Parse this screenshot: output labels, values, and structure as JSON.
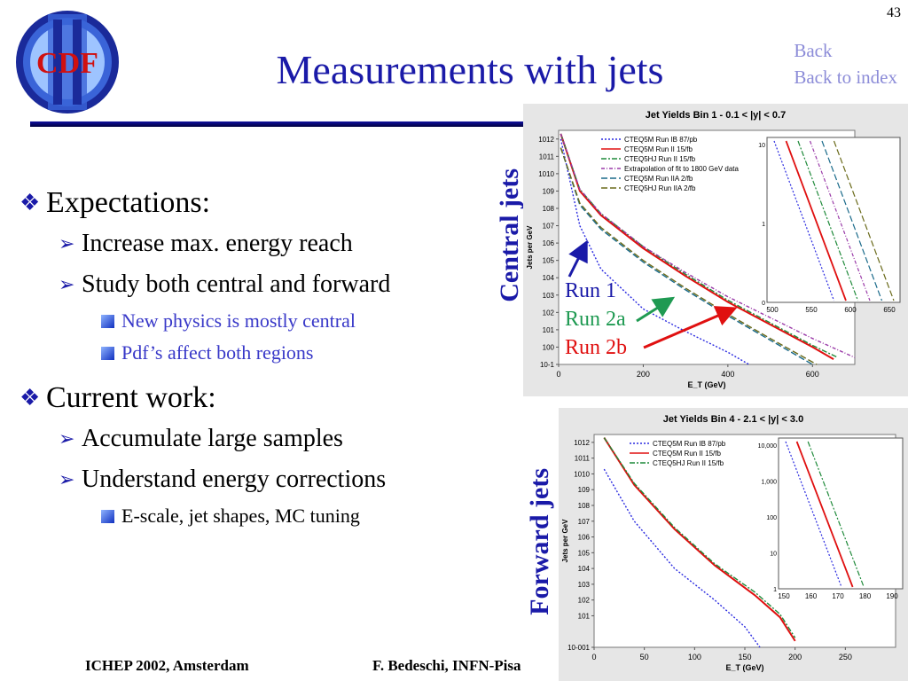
{
  "page_number": "43",
  "title": "Measurements with jets",
  "logo": {
    "text": "CDF",
    "numeral": "II"
  },
  "nav": {
    "back": "Back",
    "back_to_index": "Back to index"
  },
  "bullets": {
    "b1": "Expectations:",
    "b1_1": "Increase max. energy reach",
    "b1_2": "Study both central and forward",
    "b1_2_1": "New physics is mostly central",
    "b1_2_2": "Pdf’s affect both regions",
    "b2": "Current work:",
    "b2_1": "Accumulate large samples",
    "b2_2": "Understand energy corrections",
    "b2_2_1": "E-scale, jet shapes, MC tuning"
  },
  "side_labels": {
    "central": "Central jets",
    "forward": "Forward jets"
  },
  "run_labels": {
    "run1": "Run 1",
    "run2a": "Run 2a",
    "run2b": "Run 2b"
  },
  "footer": {
    "left": "ICHEP 2002, Amsterdam",
    "right": "F. Bedeschi, INFN-Pisa"
  },
  "colors": {
    "title": "#1a1aa8",
    "run1": "#1a1aa8",
    "run2a": "#1f9a52",
    "run2b": "#e01010"
  },
  "chart_data": [
    {
      "type": "line",
      "title": "Jet Yields Bin 1 - 0.1 < |y| < 0.7",
      "xlabel": "E_T (GeV)",
      "ylabel": "Jets per GeV",
      "xlim": [
        0,
        700
      ],
      "ylim_log10": [
        -1,
        12.5
      ],
      "y_scale": "log",
      "xticks": [
        "0",
        "200",
        "400",
        "600"
      ],
      "yticks": [
        "10^-1",
        "10^0",
        "10^1",
        "10^2",
        "10^3",
        "10^4",
        "10^5",
        "10^6",
        "10^7",
        "10^8",
        "10^9",
        "10^10",
        "10^11",
        "10^12"
      ],
      "series": [
        {
          "name": "CTEQ5M Run IB 87/pb",
          "color": "#2a2ae0",
          "dash": "2,2",
          "x": [
            5,
            50,
            100,
            200,
            300,
            400,
            450
          ],
          "log10y": [
            12,
            7,
            4.5,
            2.2,
            0.9,
            -0.3,
            -1
          ]
        },
        {
          "name": "CTEQ5M Run II 15/fb",
          "color": "#e01010",
          "dash": "",
          "x": [
            5,
            50,
            100,
            200,
            300,
            400,
            500,
            600,
            650
          ],
          "log10y": [
            12.3,
            9,
            7.6,
            5.7,
            4.1,
            2.6,
            1.3,
            0,
            -0.7
          ]
        },
        {
          "name": "CTEQ5HJ Run II 15/fb",
          "color": "#1f8a3a",
          "dash": "6,2,2,2",
          "x": [
            5,
            50,
            100,
            200,
            300,
            400,
            500,
            600,
            660
          ],
          "log10y": [
            12.3,
            9.1,
            7.7,
            5.8,
            4.2,
            2.7,
            1.4,
            0.1,
            -0.6
          ]
        },
        {
          "name": "Extrapolation of fit to 1800 GeV data",
          "color": "#9a3aa8",
          "dash": "4,2,1,2",
          "x": [
            5,
            50,
            100,
            200,
            300,
            400,
            500,
            600,
            700
          ],
          "log10y": [
            12.3,
            9.1,
            7.7,
            5.8,
            4.3,
            2.9,
            1.7,
            0.5,
            -0.6
          ]
        },
        {
          "name": "CTEQ5M Run IIA 2/fb",
          "color": "#1a6a8a",
          "dash": "7,3",
          "x": [
            5,
            50,
            100,
            200,
            300,
            400,
            500,
            600
          ],
          "log10y": [
            11.5,
            8.2,
            6.8,
            4.9,
            3.3,
            1.8,
            0.4,
            -1
          ]
        },
        {
          "name": "CTEQ5HJ Run IIA 2/fb",
          "color": "#6a6a1a",
          "dash": "7,3",
          "x": [
            5,
            50,
            100,
            200,
            300,
            400,
            500,
            610
          ],
          "log10y": [
            11.5,
            8.3,
            6.9,
            5.0,
            3.4,
            1.9,
            0.5,
            -1
          ]
        }
      ],
      "inset": {
        "xticks": [
          "500",
          "550",
          "600",
          "650"
        ],
        "yticks": [
          "0",
          "1",
          "10"
        ]
      }
    },
    {
      "type": "line",
      "title": "Jet Yields Bin 4 - 2.1 < |y| < 3.0",
      "xlabel": "E_T (GeV)",
      "ylabel": "Jets per GeV",
      "xlim": [
        0,
        300
      ],
      "ylim_log10": [
        -1,
        12.5
      ],
      "y_scale": "log",
      "xticks": [
        "0",
        "50",
        "100",
        "150",
        "200",
        "250"
      ],
      "yticks": [
        "10^-001",
        "10^1",
        "10^2",
        "10^3",
        "10^4",
        "10^5",
        "10^6",
        "10^7",
        "10^8",
        "10^9",
        "10^10",
        "10^11",
        "10^12"
      ],
      "series": [
        {
          "name": "CTEQ5M Run IB 87/pb",
          "color": "#2a2ae0",
          "dash": "2,2",
          "x": [
            10,
            40,
            80,
            120,
            150,
            165
          ],
          "log10y": [
            10.3,
            7,
            4,
            2,
            0.3,
            -1
          ]
        },
        {
          "name": "CTEQ5M Run II 15/fb",
          "color": "#e01010",
          "dash": "",
          "x": [
            10,
            40,
            80,
            120,
            160,
            185,
            200
          ],
          "log10y": [
            12.3,
            9.3,
            6.5,
            4.2,
            2.3,
            0.9,
            -0.6
          ]
        },
        {
          "name": "CTEQ5HJ Run II 15/fb",
          "color": "#1f8a3a",
          "dash": "6,2,2,2",
          "x": [
            10,
            40,
            80,
            120,
            160,
            185,
            200
          ],
          "log10y": [
            12.3,
            9.4,
            6.6,
            4.3,
            2.5,
            1.1,
            -0.4
          ]
        }
      ],
      "inset": {
        "xticks": [
          "150",
          "160",
          "170",
          "180",
          "190"
        ],
        "yticks": [
          "1",
          "10",
          "100",
          "1,000",
          "10,000"
        ]
      }
    }
  ]
}
